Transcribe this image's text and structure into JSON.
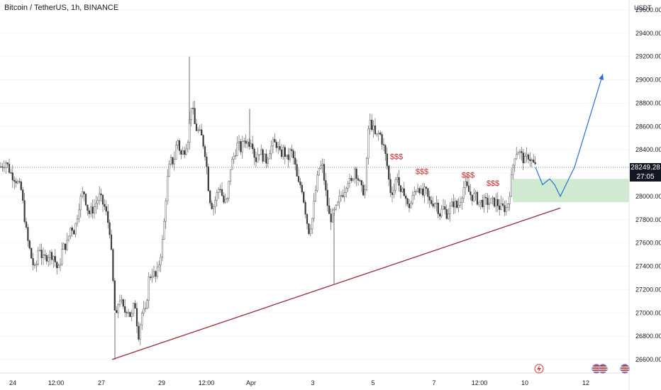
{
  "chart_title": "Bitcoin / TetherUS, 1h, BINANCE",
  "chart_data": {
    "type": "candlestick",
    "title": "Bitcoin / TetherUS, 1h, BINANCE",
    "currency_label": "USDT",
    "y_ticks": [
      "29600.00",
      "29400.00",
      "29200.00",
      "29000.00",
      "28800.00",
      "28600.00",
      "28400.00",
      "28200.00",
      "28000.00",
      "27800.00",
      "27600.00",
      "27400.00",
      "27200.00",
      "27000.00",
      "26800.00",
      "26600.00"
    ],
    "ylim": [
      26540,
      29920
    ],
    "x_tick_labels": [
      "24",
      "12:00",
      "27",
      "29",
      "12:00",
      "Apr",
      "3",
      "5",
      "7",
      "12:00",
      "10",
      "12"
    ],
    "last_price": "28249.28",
    "countdown": "27:05",
    "price_path": [
      [
        0,
        28250
      ],
      [
        8,
        28300
      ],
      [
        15,
        28200
      ],
      [
        22,
        28150
      ],
      [
        30,
        28050
      ],
      [
        38,
        27650
      ],
      [
        45,
        27450
      ],
      [
        50,
        27350
      ],
      [
        55,
        27600
      ],
      [
        60,
        27450
      ],
      [
        68,
        27500
      ],
      [
        75,
        27500
      ],
      [
        82,
        27350
      ],
      [
        88,
        27550
      ],
      [
        95,
        27600
      ],
      [
        100,
        27750
      ],
      [
        105,
        27700
      ],
      [
        112,
        27950
      ],
      [
        118,
        28050
      ],
      [
        125,
        27850
      ],
      [
        132,
        27900
      ],
      [
        140,
        28000
      ],
      [
        148,
        27900
      ],
      [
        155,
        27700
      ],
      [
        160,
        27200
      ],
      [
        163,
        26900
      ],
      [
        168,
        27150
      ],
      [
        175,
        27000
      ],
      [
        180,
        27050
      ],
      [
        185,
        26950
      ],
      [
        190,
        27100
      ],
      [
        195,
        26800
      ],
      [
        200,
        27000
      ],
      [
        205,
        27000
      ],
      [
        210,
        27300
      ],
      [
        215,
        27350
      ],
      [
        220,
        27300
      ],
      [
        225,
        27450
      ],
      [
        230,
        27650
      ],
      [
        235,
        28100
      ],
      [
        240,
        28300
      ],
      [
        245,
        28300
      ],
      [
        250,
        28500
      ],
      [
        255,
        28350
      ],
      [
        260,
        28400
      ],
      [
        265,
        28500
      ],
      [
        270,
        28800
      ],
      [
        275,
        28600
      ],
      [
        280,
        28550
      ],
      [
        285,
        28500
      ],
      [
        290,
        28350
      ],
      [
        295,
        28000
      ],
      [
        300,
        27900
      ],
      [
        305,
        28000
      ],
      [
        310,
        28100
      ],
      [
        315,
        27950
      ],
      [
        320,
        27950
      ],
      [
        325,
        28250
      ],
      [
        330,
        28350
      ],
      [
        335,
        28450
      ],
      [
        340,
        28400
      ],
      [
        345,
        28500
      ],
      [
        350,
        28450
      ],
      [
        355,
        28500
      ],
      [
        360,
        28300
      ],
      [
        365,
        28400
      ],
      [
        370,
        28350
      ],
      [
        375,
        28300
      ],
      [
        380,
        28400
      ],
      [
        385,
        28450
      ],
      [
        390,
        28450
      ],
      [
        395,
        28350
      ],
      [
        400,
        28400
      ],
      [
        405,
        28300
      ],
      [
        410,
        28400
      ],
      [
        415,
        28300
      ],
      [
        420,
        28100
      ],
      [
        425,
        28100
      ],
      [
        430,
        27900
      ],
      [
        435,
        27700
      ],
      [
        440,
        27800
      ],
      [
        445,
        28050
      ],
      [
        450,
        28250
      ],
      [
        455,
        28250
      ],
      [
        460,
        28000
      ],
      [
        465,
        27800
      ],
      [
        470,
        27850
      ],
      [
        475,
        27900
      ],
      [
        480,
        28000
      ],
      [
        485,
        28050
      ],
      [
        490,
        28150
      ],
      [
        495,
        28100
      ],
      [
        500,
        28250
      ],
      [
        505,
        28150
      ],
      [
        510,
        28050
      ],
      [
        515,
        28050
      ],
      [
        520,
        28650
      ],
      [
        525,
        28600
      ],
      [
        530,
        28500
      ],
      [
        535,
        28550
      ],
      [
        540,
        28450
      ],
      [
        545,
        28300
      ],
      [
        550,
        28050
      ],
      [
        555,
        28050
      ],
      [
        560,
        28200
      ],
      [
        565,
        28000
      ],
      [
        570,
        28050
      ],
      [
        575,
        27900
      ],
      [
        580,
        27950
      ],
      [
        585,
        28050
      ],
      [
        590,
        28100
      ],
      [
        595,
        28000
      ],
      [
        600,
        28050
      ],
      [
        605,
        27950
      ],
      [
        610,
        27950
      ],
      [
        615,
        27950
      ],
      [
        620,
        27850
      ],
      [
        625,
        27900
      ],
      [
        630,
        27850
      ],
      [
        635,
        27900
      ],
      [
        640,
        27950
      ],
      [
        645,
        27900
      ],
      [
        650,
        28000
      ],
      [
        655,
        28100
      ],
      [
        660,
        28050
      ],
      [
        665,
        28000
      ],
      [
        670,
        28000
      ],
      [
        675,
        27950
      ],
      [
        680,
        27950
      ],
      [
        685,
        27950
      ],
      [
        690,
        27950
      ],
      [
        695,
        27950
      ],
      [
        700,
        27950
      ],
      [
        705,
        27900
      ],
      [
        710,
        27900
      ],
      [
        715,
        27900
      ],
      [
        720,
        28100
      ],
      [
        725,
        28350
      ],
      [
        730,
        28400
      ],
      [
        735,
        28350
      ],
      [
        740,
        28300
      ],
      [
        745,
        28350
      ],
      [
        750,
        28300
      ],
      [
        755,
        28250
      ]
    ],
    "extremes": [
      [
        267,
        29200
      ],
      [
        162,
        26600
      ],
      [
        471,
        27250
      ],
      [
        352,
        28750
      ]
    ],
    "trendline": [
      [
        158,
        26600
      ],
      [
        790,
        27900
      ]
    ],
    "zone": {
      "y_top": 28150,
      "y_bottom": 27950
    },
    "projection": [
      [
        755,
        28250
      ],
      [
        765,
        28100
      ],
      [
        775,
        28150
      ],
      [
        782,
        28100
      ],
      [
        790,
        28000
      ],
      [
        810,
        28250
      ],
      [
        850,
        29050
      ]
    ],
    "annotations": [
      {
        "text": "$$$",
        "x": 559,
        "y": 28320
      },
      {
        "text": "$$$",
        "x": 595,
        "y": 28190
      },
      {
        "text": "$$$",
        "x": 660,
        "y": 28160
      },
      {
        "text": "$$$",
        "x": 695,
        "y": 28090
      }
    ]
  }
}
